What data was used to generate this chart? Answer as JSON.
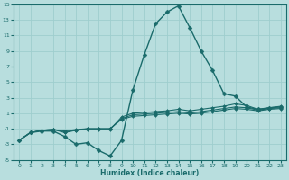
{
  "title": "",
  "xlabel": "Humidex (Indice chaleur)",
  "background_color": "#b8dede",
  "grid_color": "#9ecece",
  "line_color": "#1a6b6b",
  "xmin": -0.5,
  "xmax": 23.5,
  "ymin": -5,
  "ymax": 15,
  "yticks": [
    -5,
    -3,
    -1,
    1,
    3,
    5,
    7,
    9,
    11,
    13,
    15
  ],
  "xticks": [
    0,
    1,
    2,
    3,
    4,
    5,
    6,
    7,
    8,
    9,
    10,
    11,
    12,
    13,
    14,
    15,
    16,
    17,
    18,
    19,
    20,
    21,
    22,
    23
  ],
  "series": [
    {
      "x": [
        0,
        1,
        2,
        3,
        4,
        5,
        6,
        7,
        8,
        9,
        10,
        11,
        12,
        13,
        14,
        15,
        16,
        17,
        18,
        19,
        20,
        21,
        22,
        23
      ],
      "y": [
        -2.5,
        -1.5,
        -1.3,
        -1.3,
        -2.0,
        -3.0,
        -2.8,
        -3.8,
        -4.5,
        -2.5,
        4.0,
        8.5,
        12.5,
        14.0,
        14.8,
        12.0,
        9.0,
        6.5,
        3.5,
        3.2,
        1.8,
        1.5,
        1.7,
        1.8
      ],
      "lw": 1.0,
      "ms": 2.5
    },
    {
      "x": [
        0,
        1,
        2,
        3,
        4,
        5,
        6,
        7,
        8,
        9,
        10,
        11,
        12,
        13,
        14,
        15,
        16,
        17,
        18,
        19,
        20,
        21,
        22,
        23
      ],
      "y": [
        -2.5,
        -1.5,
        -1.2,
        -1.1,
        -1.5,
        -1.2,
        -1.1,
        -1.1,
        -1.1,
        0.5,
        1.0,
        1.1,
        1.2,
        1.3,
        1.5,
        1.3,
        1.5,
        1.7,
        1.9,
        2.2,
        2.0,
        1.5,
        1.7,
        1.9
      ],
      "lw": 0.8,
      "ms": 2.0
    },
    {
      "x": [
        0,
        1,
        2,
        3,
        4,
        5,
        6,
        7,
        8,
        9,
        10,
        11,
        12,
        13,
        14,
        15,
        16,
        17,
        18,
        19,
        20,
        21,
        22,
        23
      ],
      "y": [
        -2.5,
        -1.5,
        -1.2,
        -1.1,
        -1.4,
        -1.2,
        -1.0,
        -1.0,
        -1.0,
        0.3,
        0.8,
        0.9,
        1.0,
        1.1,
        1.2,
        1.0,
        1.2,
        1.4,
        1.6,
        1.8,
        1.7,
        1.4,
        1.6,
        1.7
      ],
      "lw": 0.8,
      "ms": 2.0
    },
    {
      "x": [
        0,
        1,
        2,
        3,
        4,
        5,
        6,
        7,
        8,
        9,
        10,
        11,
        12,
        13,
        14,
        15,
        16,
        17,
        18,
        19,
        20,
        21,
        22,
        23
      ],
      "y": [
        -2.5,
        -1.5,
        -1.2,
        -1.1,
        -1.3,
        -1.1,
        -1.0,
        -1.0,
        -1.0,
        0.2,
        0.6,
        0.7,
        0.8,
        0.9,
        1.0,
        0.9,
        1.0,
        1.2,
        1.4,
        1.6,
        1.5,
        1.3,
        1.5,
        1.6
      ],
      "lw": 0.8,
      "ms": 2.0
    }
  ]
}
